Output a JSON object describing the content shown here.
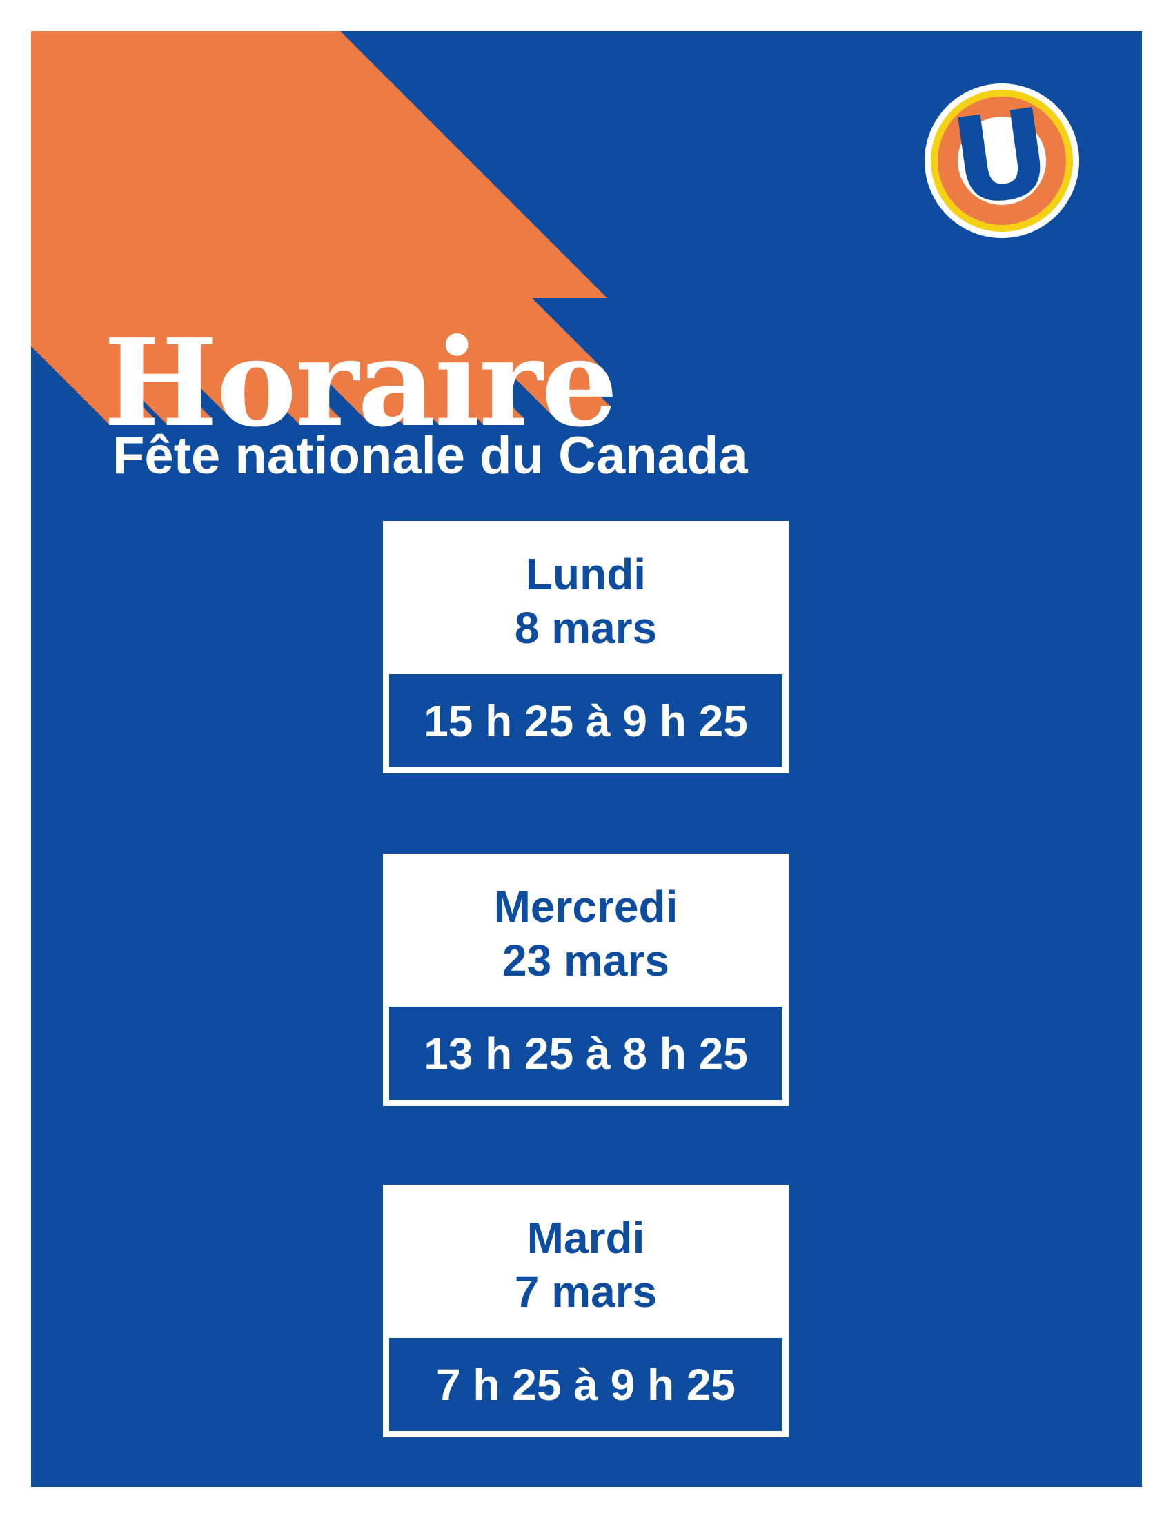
{
  "page": {
    "background": "#ffffff",
    "panel_color": "#0E4C9F",
    "accent_orange": "#EC7C44",
    "accent_yellow": "#F5D116"
  },
  "header": {
    "title": "Horaire",
    "subtitle": "Fête nationale du Canada"
  },
  "logo": {
    "letter": "U"
  },
  "cards": [
    {
      "day": "Lundi",
      "date": "8 mars",
      "time": "15 h 25 à 9 h 25"
    },
    {
      "day": "Mercredi",
      "date": "23 mars",
      "time": "13 h 25 à 8 h 25"
    },
    {
      "day": "Mardi",
      "date": "7 mars",
      "time": "7 h 25 à 9 h 25"
    }
  ]
}
